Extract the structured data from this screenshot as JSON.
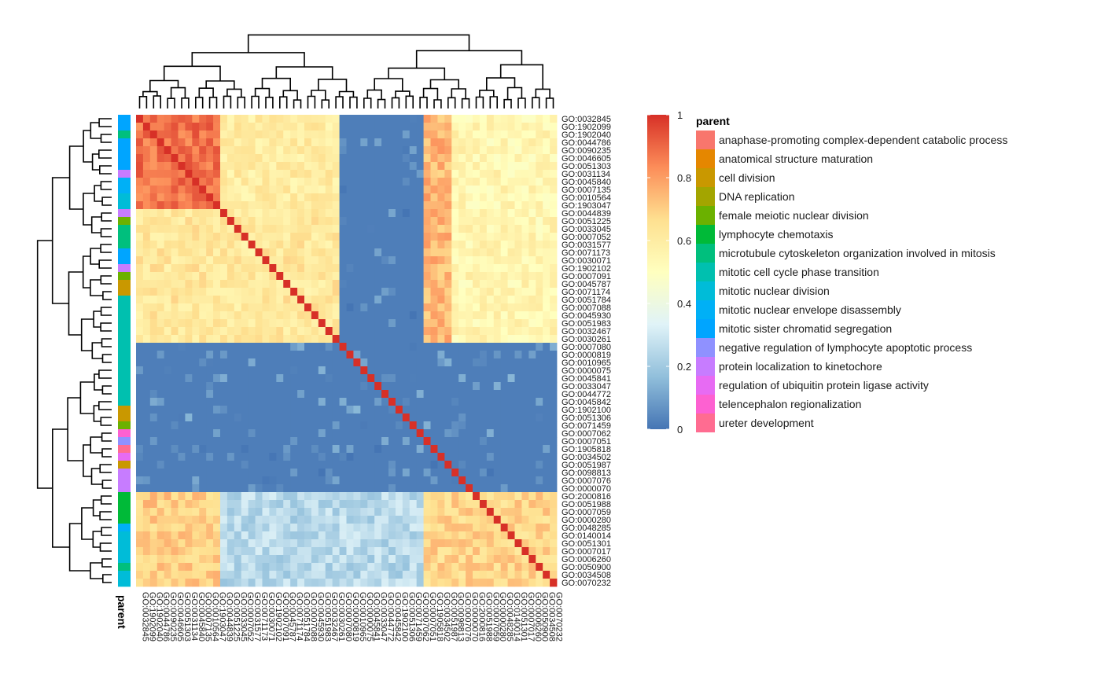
{
  "chart_data": {
    "type": "heatmap",
    "title": "",
    "row_labels": [
      "GO:0032845",
      "GO:1902099",
      "GO:1902040",
      "GO:0044786",
      "GO:0090235",
      "GO:0046605",
      "GO:0051303",
      "GO:0031134",
      "GO:0045840",
      "GO:0007135",
      "GO:0010564",
      "GO:1903047",
      "GO:0044839",
      "GO:0051225",
      "GO:0033045",
      "GO:0007052",
      "GO:0031577",
      "GO:0071173",
      "GO:0030071",
      "GO:1902102",
      "GO:0007091",
      "GO:0045787",
      "GO:0071174",
      "GO:0051784",
      "GO:0007088",
      "GO:0045930",
      "GO:0051983",
      "GO:0032467",
      "GO:0030261",
      "GO:0007080",
      "GO:0000819",
      "GO:0010965",
      "GO:0000075",
      "GO:0045841",
      "GO:0033047",
      "GO:0044772",
      "GO:0045842",
      "GO:1902100",
      "GO:0051306",
      "GO:0071459",
      "GO:0007062",
      "GO:0007051",
      "GO:1905818",
      "GO:0034502",
      "GO:0051987",
      "GO:0098813",
      "GO:0007076",
      "GO:0000070",
      "GO:2000816",
      "GO:0051988",
      "GO:0007059",
      "GO:0000280",
      "GO:0048285",
      "GO:0140014",
      "GO:0051301",
      "GO:0007017",
      "GO:0006260",
      "GO:0050900",
      "GO:0034508",
      "GO:0070232"
    ],
    "col_labels": [
      "GO:0032845",
      "GO:1902099",
      "GO:1902040",
      "GO:0044786",
      "GO:0090235",
      "GO:0046605",
      "GO:0051303",
      "GO:0031134",
      "GO:0045840",
      "GO:0007135",
      "GO:0010564",
      "GO:1903047",
      "GO:0044839",
      "GO:0051225",
      "GO:0033045",
      "GO:0007052",
      "GO:0031577",
      "GO:0071173",
      "GO:0030071",
      "GO:1902102",
      "GO:0007091",
      "GO:0045787",
      "GO:0071174",
      "GO:0051784",
      "GO:0007088",
      "GO:0045930",
      "GO:0051983",
      "GO:0032467",
      "GO:0030261",
      "GO:0007080",
      "GO:0000819",
      "GO:0010965",
      "GO:0000075",
      "GO:0045841",
      "GO:0033047",
      "GO:0044772",
      "GO:0045842",
      "GO:1902100",
      "GO:0051306",
      "GO:0071459",
      "GO:0007062",
      "GO:0007051",
      "GO:1905818",
      "GO:0034502",
      "GO:0051987",
      "GO:0098813",
      "GO:0007076",
      "GO:0000070",
      "GO:2000816",
      "GO:0051988",
      "GO:0007059",
      "GO:0000280",
      "GO:0048285",
      "GO:0140014",
      "GO:0051301",
      "GO:0007017",
      "GO:0006260",
      "GO:0050900",
      "GO:0034508",
      "GO:0070232"
    ],
    "value_range": [
      0,
      1
    ],
    "value_blocks": [
      {
        "rows": [
          0,
          12
        ],
        "cols": [
          0,
          12
        ],
        "value": 0.88
      },
      {
        "rows": [
          0,
          12
        ],
        "cols": [
          12,
          29
        ],
        "value": 0.6
      },
      {
        "rows": [
          0,
          29
        ],
        "cols": [
          29,
          41
        ],
        "value": 0.05
      },
      {
        "rows": [
          0,
          29
        ],
        "cols": [
          41,
          45
        ],
        "value": 0.75
      },
      {
        "rows": [
          0,
          29
        ],
        "cols": [
          45,
          60
        ],
        "value": 0.55
      },
      {
        "rows": [
          12,
          29
        ],
        "cols": [
          0,
          29
        ],
        "value": 0.62
      },
      {
        "rows": [
          29,
          41
        ],
        "cols": [
          0,
          60
        ],
        "value": 0.08
      },
      {
        "rows": [
          41,
          48
        ],
        "cols": [
          0,
          60
        ],
        "value": 0.06
      },
      {
        "rows": [
          48,
          60
        ],
        "cols": [
          0,
          12
        ],
        "value": 0.7
      },
      {
        "rows": [
          48,
          60
        ],
        "cols": [
          12,
          41
        ],
        "value": 0.25
      },
      {
        "rows": [
          48,
          60
        ],
        "cols": [
          41,
          60
        ],
        "value": 0.68
      }
    ],
    "diagonal_value": 1.0,
    "row_annotation": {
      "name": "parent",
      "groups": [
        {
          "from": 0,
          "to": 2,
          "category": 10
        },
        {
          "from": 2,
          "to": 3,
          "category": 6
        },
        {
          "from": 3,
          "to": 7,
          "category": 10
        },
        {
          "from": 7,
          "to": 8,
          "category": 12
        },
        {
          "from": 8,
          "to": 10,
          "category": 9
        },
        {
          "from": 10,
          "to": 12,
          "category": 8
        },
        {
          "from": 12,
          "to": 13,
          "category": 12
        },
        {
          "from": 13,
          "to": 14,
          "category": 4
        },
        {
          "from": 14,
          "to": 17,
          "category": 6
        },
        {
          "from": 17,
          "to": 19,
          "category": 10
        },
        {
          "from": 19,
          "to": 20,
          "category": 12
        },
        {
          "from": 20,
          "to": 21,
          "category": 4
        },
        {
          "from": 21,
          "to": 23,
          "category": 2
        },
        {
          "from": 23,
          "to": 37,
          "category": 7
        },
        {
          "from": 37,
          "to": 39,
          "category": 2
        },
        {
          "from": 39,
          "to": 40,
          "category": 4
        },
        {
          "from": 40,
          "to": 41,
          "category": 14
        },
        {
          "from": 41,
          "to": 42,
          "category": 11
        },
        {
          "from": 42,
          "to": 43,
          "category": 15
        },
        {
          "from": 43,
          "to": 44,
          "category": 13
        },
        {
          "from": 44,
          "to": 45,
          "category": 2
        },
        {
          "from": 45,
          "to": 48,
          "category": 12
        },
        {
          "from": 48,
          "to": 52,
          "category": 5
        },
        {
          "from": 52,
          "to": 53,
          "category": 9
        },
        {
          "from": 53,
          "to": 57,
          "category": 8
        },
        {
          "from": 57,
          "to": 58,
          "category": 6
        },
        {
          "from": 58,
          "to": 60,
          "category": 8
        }
      ]
    },
    "column_annotation_label": "parent",
    "colorbar": {
      "ticks": [
        "0",
        "0.2",
        "0.4",
        "0.6",
        "0.8",
        "1"
      ],
      "colors": [
        "#4575b4",
        "#91bfdb",
        "#e0f3f8",
        "#ffffbf",
        "#fee090",
        "#fc8d59",
        "#d73027"
      ]
    },
    "legend": {
      "title": "parent",
      "entries": [
        {
          "label": "anaphase-promoting complex-dependent catabolic process",
          "color": "#f8766d"
        },
        {
          "label": "anatomical structure maturation",
          "color": "#e58700"
        },
        {
          "label": "cell division",
          "color": "#c99800"
        },
        {
          "label": "DNA replication",
          "color": "#a3a500"
        },
        {
          "label": "female meiotic nuclear division",
          "color": "#6bb100"
        },
        {
          "label": "lymphocyte chemotaxis",
          "color": "#00ba38"
        },
        {
          "label": "microtubule cytoskeleton organization involved in mitosis",
          "color": "#00bf7d"
        },
        {
          "label": "mitotic cell cycle phase transition",
          "color": "#00c0af"
        },
        {
          "label": "mitotic nuclear division",
          "color": "#00bcd8"
        },
        {
          "label": "mitotic nuclear envelope disassembly",
          "color": "#00b0f6"
        },
        {
          "label": "mitotic sister chromatid segregation",
          "color": "#00a5ff"
        },
        {
          "label": "negative regulation of lymphocyte apoptotic process",
          "color": "#8f91ff"
        },
        {
          "label": "protein localization to kinetochore",
          "color": "#c77cff"
        },
        {
          "label": "regulation of ubiquitin protein ligase activity",
          "color": "#e76bf3"
        },
        {
          "label": "telencephalon regionalization",
          "color": "#fd61d1"
        },
        {
          "label": "ureter development",
          "color": "#ff6c91"
        }
      ]
    }
  }
}
